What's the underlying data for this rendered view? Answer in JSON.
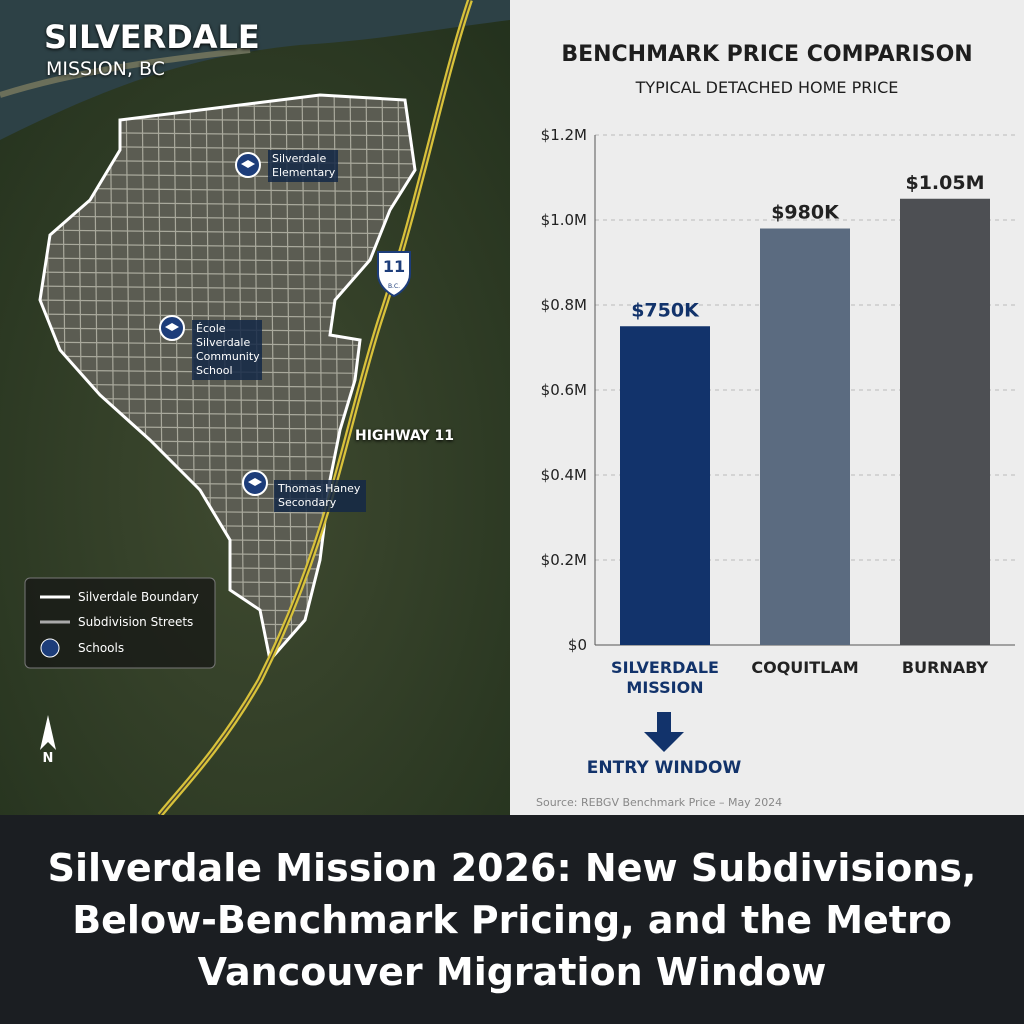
{
  "map": {
    "title": "SILVERDALE",
    "subtitle": "MISSION, BC",
    "highway_label": "HIGHWAY 11",
    "shield_number": "11",
    "shield_text": "B.C.",
    "schools": [
      "Silverdale Elementary",
      "École Silverdale Community School",
      "Thomas Haney Secondary"
    ],
    "legend": [
      "Silverdale Boundary",
      "Subdivision Streets",
      "Schools"
    ],
    "north": "N"
  },
  "chart_data": {
    "type": "bar",
    "title": "BENCHMARK PRICE COMPARISON",
    "subtitle": "TYPICAL DETACHED HOME PRICE",
    "categories": [
      "SILVERDALE MISSION",
      "COQUITLAM",
      "BURNABY"
    ],
    "values": [
      750000,
      980000,
      1050000
    ],
    "value_labels": [
      "$750K",
      "$980K",
      "$1.05M"
    ],
    "colors": [
      "#12336b",
      "#5b6b80",
      "#4d4f53"
    ],
    "ylim": [
      0,
      1200000
    ],
    "yticks": [
      {
        "value": 0,
        "label": "$0"
      },
      {
        "value": 200000,
        "label": "$0.2M"
      },
      {
        "value": 400000,
        "label": "$0.4M"
      },
      {
        "value": 600000,
        "label": "$0.6M"
      },
      {
        "value": 800000,
        "label": "$0.8M"
      },
      {
        "value": 1000000,
        "label": "$1.0M"
      },
      {
        "value": 1200000,
        "label": "$1.2M"
      }
    ],
    "grid": true,
    "annotation": "ENTRY WINDOW",
    "source": "Source: REBGV Benchmark Price – May 2024"
  },
  "banner": {
    "title": "Silverdale Mission 2026: New Subdivisions, Below-Benchmark Pricing, and the Metro Vancouver Migration Window"
  }
}
